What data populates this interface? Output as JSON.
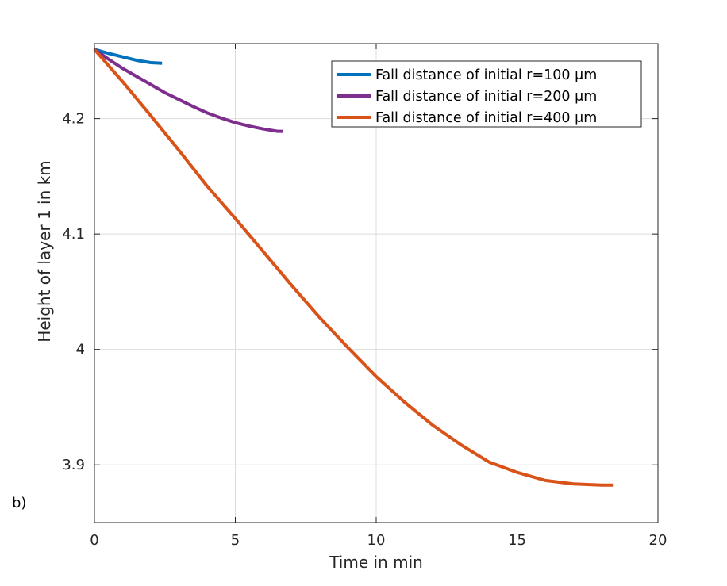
{
  "chart_data": {
    "type": "line",
    "title": "",
    "xlabel": "Time in min",
    "ylabel": "Height of layer 1 in km",
    "xlim": [
      0,
      20
    ],
    "ylim": [
      3.85,
      4.265
    ],
    "xticks": [
      0,
      5,
      10,
      15,
      20
    ],
    "xtick_labels": [
      "0",
      "5",
      "10",
      "15",
      "20"
    ],
    "yticks": [
      3.9,
      4.0,
      4.1,
      4.2
    ],
    "ytick_labels": [
      "3.9",
      "4",
      "4.1",
      "4.2"
    ],
    "grid": true,
    "legend_position": "top-right",
    "panel_label": "b)",
    "series": [
      {
        "name": "Fall distance of initial r=100 μm",
        "color": "#0072BD",
        "x": [
          0,
          0.5,
          1.0,
          1.5,
          2.0,
          2.4
        ],
        "y": [
          4.26,
          4.2565,
          4.2535,
          4.2505,
          4.2485,
          4.248
        ]
      },
      {
        "name": "Fall distance of initial r=200 μm",
        "color": "#7E2F8E",
        "x": [
          0,
          0.5,
          1.0,
          1.5,
          2.0,
          2.5,
          3.0,
          3.5,
          4.0,
          4.5,
          5.0,
          5.5,
          6.0,
          6.5,
          6.7
        ],
        "y": [
          4.26,
          4.2515,
          4.2435,
          4.2365,
          4.2295,
          4.2225,
          4.2165,
          4.2105,
          4.205,
          4.2005,
          4.1965,
          4.1935,
          4.191,
          4.189,
          4.189
        ]
      },
      {
        "name": "Fall distance of initial r=400 μm",
        "color": "#D95319",
        "x": [
          0,
          1,
          2,
          3,
          4,
          5,
          6,
          7,
          8,
          9,
          10,
          11,
          12,
          13,
          14,
          15,
          16,
          17,
          18,
          18.4
        ],
        "y": [
          4.26,
          4.232,
          4.2025,
          4.1725,
          4.1415,
          4.1135,
          4.0845,
          4.0555,
          4.0275,
          4.0015,
          3.9765,
          3.9545,
          3.9345,
          3.9175,
          3.9025,
          3.8935,
          3.8865,
          3.8835,
          3.8825,
          3.8825
        ]
      }
    ]
  }
}
